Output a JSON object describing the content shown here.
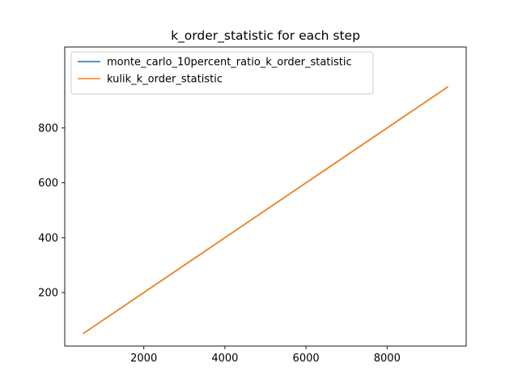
{
  "chart_data": {
    "type": "line",
    "title": "k_order_statistic for each step",
    "xlabel": "",
    "ylabel": "",
    "xlim": [
      50,
      9950
    ],
    "ylim": [
      5,
      1095
    ],
    "x_ticks": [
      2000,
      4000,
      6000,
      8000
    ],
    "y_ticks": [
      200,
      400,
      600,
      800
    ],
    "grid": false,
    "legend_position": "upper-left",
    "series": [
      {
        "name": "monte_carlo_10percent_ratio_k_order_statistic",
        "color": "#1f77b4",
        "x": [
          500,
          9500
        ],
        "y": [
          50,
          950
        ]
      },
      {
        "name": "kulik_k_order_statistic",
        "color": "#ff7f0e",
        "x": [
          500,
          9500
        ],
        "y": [
          50,
          950
        ]
      }
    ]
  }
}
